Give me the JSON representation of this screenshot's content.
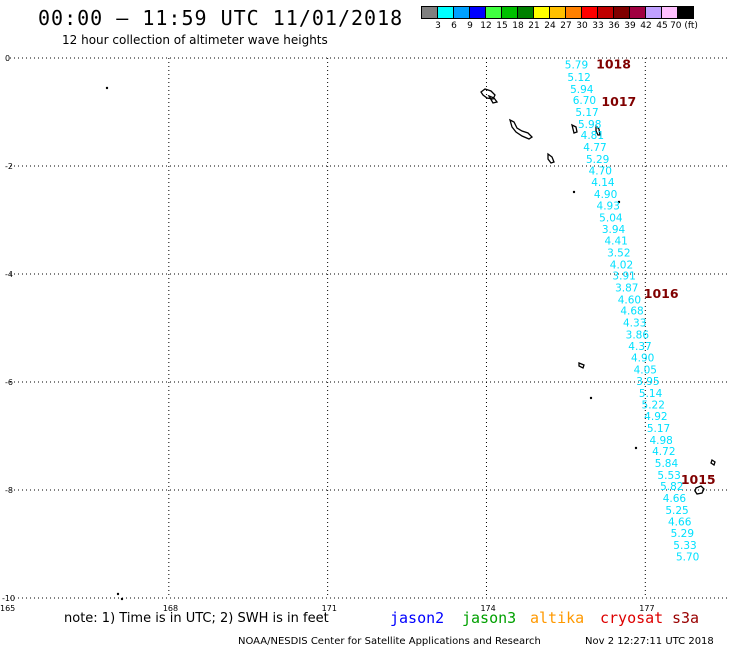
{
  "header": {
    "title": "00:00 – 11:59 UTC 11/01/2018",
    "subtitle": "12 hour collection of altimeter wave heights"
  },
  "color_scale": {
    "labels": [
      "3",
      "6",
      "9",
      "12",
      "15",
      "18",
      "21",
      "24",
      "27",
      "30",
      "33",
      "36",
      "39",
      "42",
      "45",
      "70 (ft)"
    ],
    "colors": [
      "#808080",
      "#00ffff",
      "#00a0ff",
      "#0000ff",
      "#40ff40",
      "#00c000",
      "#008000",
      "#ffff00",
      "#ffc000",
      "#ff8000",
      "#ff0000",
      "#c00000",
      "#800000",
      "#a00040",
      "#c0a0ff",
      "#ffc0ff",
      "#000000"
    ]
  },
  "chart_data": {
    "type": "map",
    "longitude_ticks": [
      165,
      168,
      171,
      174,
      177
    ],
    "latitude_ticks": [
      0,
      -2,
      -4,
      -6,
      -8,
      -10
    ],
    "xlim": [
      165,
      178.6
    ],
    "ylim": [
      -10,
      0
    ],
    "grid": true,
    "wave_color": "#00e0ff",
    "pressure_color": "#800000",
    "pressure_labels": [
      {
        "value": "1018",
        "lon": 176.4,
        "lat": -0.1
      },
      {
        "value": "1017",
        "lon": 176.5,
        "lat": -0.8
      },
      {
        "value": "1016",
        "lon": 177.3,
        "lat": -4.35
      },
      {
        "value": "1015",
        "lon": 178.0,
        "lat": -7.8
      }
    ],
    "wave_heights_ft": [
      {
        "value": "5.79",
        "lon": 175.7,
        "lat": -0.12
      },
      {
        "value": "5.12",
        "lon": 175.75,
        "lat": -0.35
      },
      {
        "value": "5.94",
        "lon": 175.8,
        "lat": -0.57
      },
      {
        "value": "6.70",
        "lon": 175.85,
        "lat": -0.78
      },
      {
        "value": "5.17",
        "lon": 175.9,
        "lat": -1.0
      },
      {
        "value": "5.98",
        "lon": 175.95,
        "lat": -1.22
      },
      {
        "value": "4.81",
        "lon": 176.0,
        "lat": -1.43
      },
      {
        "value": "4.77",
        "lon": 176.05,
        "lat": -1.65
      },
      {
        "value": "5.29",
        "lon": 176.1,
        "lat": -1.87
      },
      {
        "value": "4.70",
        "lon": 176.15,
        "lat": -2.08
      },
      {
        "value": "4.14",
        "lon": 176.2,
        "lat": -2.3
      },
      {
        "value": "4.90",
        "lon": 176.25,
        "lat": -2.52
      },
      {
        "value": "4.93",
        "lon": 176.3,
        "lat": -2.73
      },
      {
        "value": "5.04",
        "lon": 176.35,
        "lat": -2.95
      },
      {
        "value": "3.94",
        "lon": 176.4,
        "lat": -3.17
      },
      {
        "value": "4.41",
        "lon": 176.45,
        "lat": -3.38
      },
      {
        "value": "3.52",
        "lon": 176.5,
        "lat": -3.6
      },
      {
        "value": "4.02",
        "lon": 176.55,
        "lat": -3.82
      },
      {
        "value": "3.91",
        "lon": 176.6,
        "lat": -4.03
      },
      {
        "value": "3.87",
        "lon": 176.65,
        "lat": -4.25
      },
      {
        "value": "4.60",
        "lon": 176.7,
        "lat": -4.47
      },
      {
        "value": "4.68",
        "lon": 176.75,
        "lat": -4.68
      },
      {
        "value": "4.33",
        "lon": 176.8,
        "lat": -4.9
      },
      {
        "value": "3.86",
        "lon": 176.85,
        "lat": -5.12
      },
      {
        "value": "4.37",
        "lon": 176.9,
        "lat": -5.33
      },
      {
        "value": "4.90",
        "lon": 176.95,
        "lat": -5.55
      },
      {
        "value": "4.05",
        "lon": 177.0,
        "lat": -5.77
      },
      {
        "value": "3.95",
        "lon": 177.05,
        "lat": -5.98
      },
      {
        "value": "5.14",
        "lon": 177.1,
        "lat": -6.2
      },
      {
        "value": "5.22",
        "lon": 177.15,
        "lat": -6.42
      },
      {
        "value": "4.92",
        "lon": 177.2,
        "lat": -6.63
      },
      {
        "value": "5.17",
        "lon": 177.25,
        "lat": -6.85
      },
      {
        "value": "4.98",
        "lon": 177.3,
        "lat": -7.07
      },
      {
        "value": "4.72",
        "lon": 177.35,
        "lat": -7.28
      },
      {
        "value": "5.84",
        "lon": 177.4,
        "lat": -7.5
      },
      {
        "value": "5.53",
        "lon": 177.45,
        "lat": -7.72
      },
      {
        "value": "5.82",
        "lon": 177.5,
        "lat": -7.93
      },
      {
        "value": "4.66",
        "lon": 177.55,
        "lat": -8.15
      },
      {
        "value": "5.25",
        "lon": 177.6,
        "lat": -8.37
      },
      {
        "value": "4.66",
        "lon": 177.65,
        "lat": -8.58
      },
      {
        "value": "5.29",
        "lon": 177.7,
        "lat": -8.8
      },
      {
        "value": "5.33",
        "lon": 177.75,
        "lat": -9.02
      },
      {
        "value": "5.70",
        "lon": 177.8,
        "lat": -9.23
      }
    ]
  },
  "note": "note: 1) Time is in UTC; 2) SWH is in feet",
  "satellites": [
    {
      "name": "jason2",
      "color": "#0000ff"
    },
    {
      "name": "jason3",
      "color": "#00a000"
    },
    {
      "name": "altika",
      "color": "#ff9900"
    },
    {
      "name": "cryosat",
      "color": "#dd0000"
    },
    {
      "name": "s3a",
      "color": "#990000"
    }
  ],
  "footer": {
    "credit": "NOAA/NESDIS Center for Satellite Applications and Research",
    "generated": "Nov  2 12:27:11 UTC 2018"
  }
}
